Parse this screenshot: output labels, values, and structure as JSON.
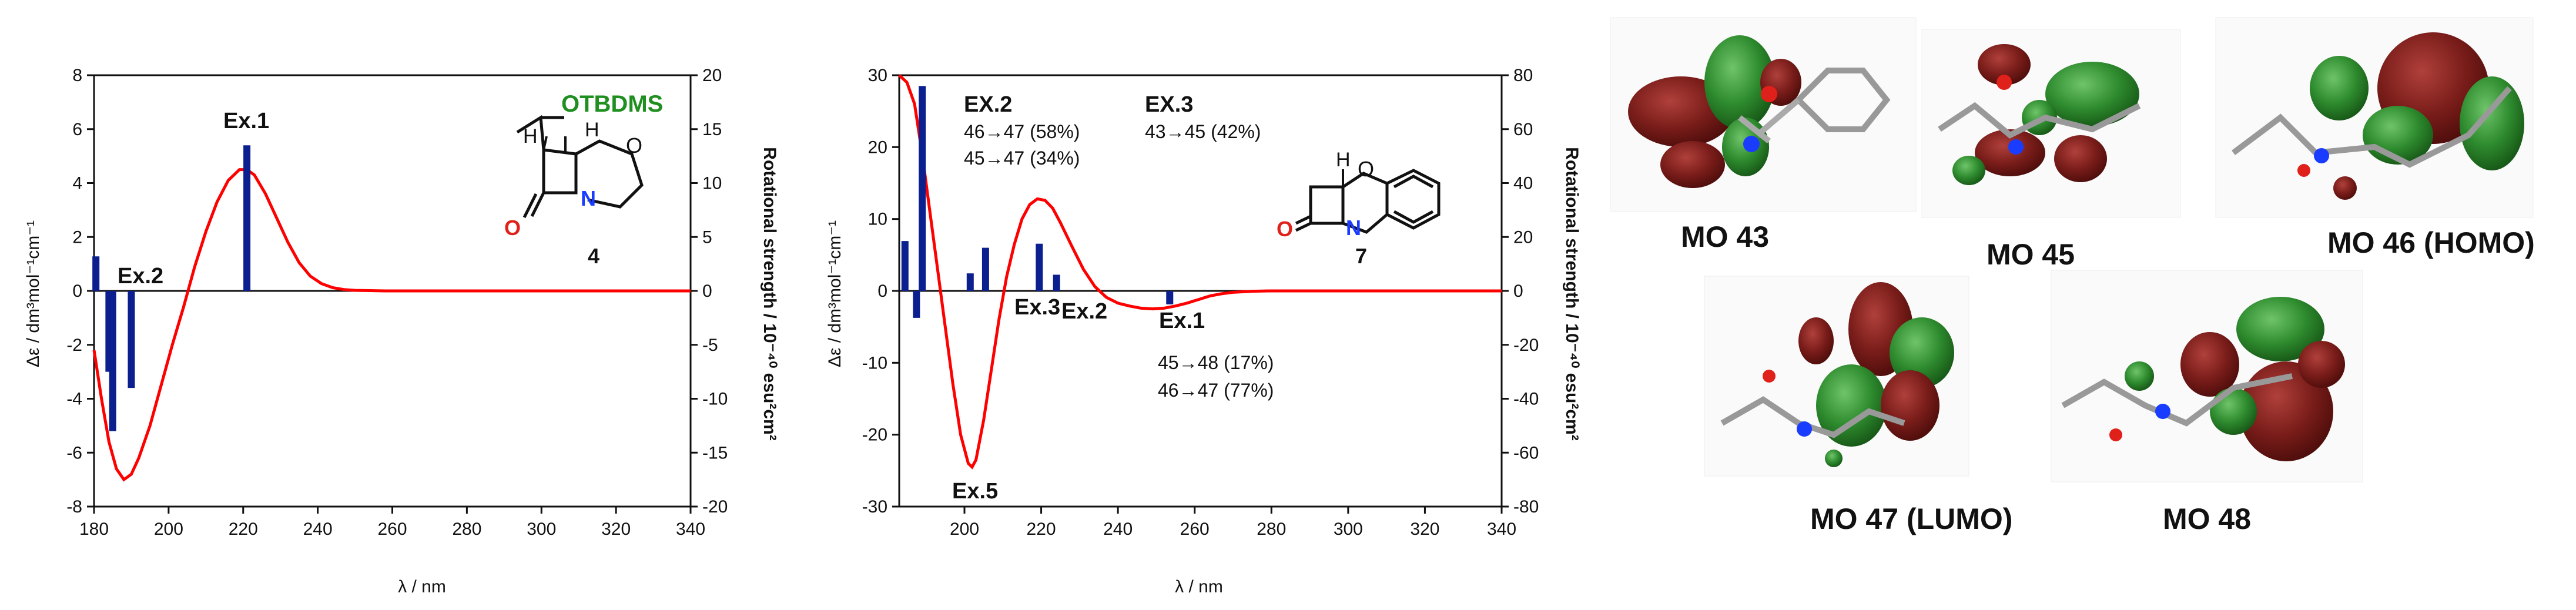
{
  "chart_data": [
    {
      "type": "line",
      "xlabel": "λ / nm",
      "ylabel": "Δε / dm³mol⁻¹cm⁻¹",
      "y2label": "Rotational strength / 10⁻⁴⁰ esu²cm²",
      "xlim": [
        180,
        340
      ],
      "ylim": [
        -8,
        8
      ],
      "y2lim": [
        -20,
        20
      ],
      "xticks": [
        "180",
        "200",
        "220",
        "240",
        "260",
        "280",
        "300",
        "320",
        "340"
      ],
      "yticks": [
        "-8",
        "-6",
        "-4",
        "-2",
        "0",
        "2",
        "4",
        "6",
        "8"
      ],
      "y2ticks": [
        "-20",
        "-15",
        "-10",
        "-5",
        "0",
        "5",
        "10",
        "15",
        "20"
      ],
      "curve": {
        "color": "#ff0000",
        "x": [
          180,
          182,
          184,
          186,
          188,
          190,
          192,
          195,
          198,
          201,
          204,
          207,
          210,
          213,
          216,
          219,
          221,
          223,
          226,
          229,
          232,
          235,
          238,
          241,
          244,
          247,
          250,
          254,
          258,
          262,
          270,
          280,
          300,
          320,
          340
        ],
        "y": [
          -2.2,
          -4.0,
          -5.6,
          -6.6,
          -7.0,
          -6.8,
          -6.2,
          -5.0,
          -3.5,
          -2.0,
          -0.6,
          0.9,
          2.2,
          3.3,
          4.1,
          4.5,
          4.5,
          4.3,
          3.6,
          2.7,
          1.8,
          1.05,
          0.55,
          0.27,
          0.12,
          0.05,
          0.02,
          0.01,
          0,
          0,
          0,
          0,
          0,
          0,
          0
        ]
      },
      "sticks": {
        "color": "#0b1f8e",
        "x": [
          180.5,
          184,
          185,
          190,
          221
        ],
        "r": [
          3.2,
          -7.5,
          -13,
          -9,
          13.5
        ]
      },
      "labels": [
        "Ex.1",
        "Ex.2"
      ],
      "compound": {
        "label": "4",
        "substituent": "OTBDMS",
        "h1": "H",
        "h2": "H",
        "o": "O",
        "n": "N",
        "carbonyl_o": "O"
      }
    },
    {
      "type": "line",
      "xlabel": "λ / nm",
      "ylabel": "Δε / dm³mol⁻¹cm⁻¹",
      "y2label": "Rotational strength / 10⁻⁴⁰ esu²cm²",
      "xlim": [
        183,
        340
      ],
      "ylim": [
        -30,
        30
      ],
      "y2lim": [
        -80,
        80
      ],
      "xticks": [
        "200",
        "220",
        "240",
        "260",
        "280",
        "300",
        "320",
        "340"
      ],
      "yticks": [
        "-30",
        "-20",
        "-10",
        "0",
        "10",
        "20",
        "30"
      ],
      "y2ticks": [
        "-80",
        "-60",
        "-40",
        "-20",
        "0",
        "20",
        "40",
        "60",
        "80"
      ],
      "curve": {
        "color": "#ff0000",
        "x": [
          183,
          185,
          187,
          189,
          191,
          193,
          195,
          197,
          199,
          201,
          202,
          203,
          205,
          207,
          209,
          211,
          213,
          215,
          217,
          219,
          221,
          223,
          225,
          228,
          231,
          234,
          237,
          240,
          243,
          246,
          249,
          252,
          255,
          258,
          261,
          264,
          267,
          270,
          275,
          280,
          290,
          300,
          320,
          340
        ],
        "y": [
          30,
          29,
          26,
          19,
          11,
          3,
          -5,
          -13,
          -20,
          -24,
          -24.5,
          -23.5,
          -18,
          -11,
          -4,
          2,
          6.5,
          10,
          12,
          12.8,
          12.6,
          11.5,
          9.5,
          6.2,
          3.0,
          0.6,
          -0.9,
          -1.7,
          -2.1,
          -2.4,
          -2.5,
          -2.4,
          -2.1,
          -1.7,
          -1.2,
          -0.7,
          -0.4,
          -0.2,
          -0.05,
          0,
          0,
          0,
          0,
          0
        ]
      },
      "sticks": {
        "color": "#0b1f8e",
        "x": [
          184.5,
          187.5,
          189,
          201.5,
          205.5,
          219.5,
          224,
          253.5
        ],
        "r": [
          18.5,
          -10,
          76,
          6.5,
          16,
          17.5,
          6,
          -5
        ]
      },
      "labels": [
        "Ex.5",
        "Ex.3",
        "Ex.2",
        "Ex.1"
      ],
      "annotations": {
        "ex2_title": "EX.2",
        "ex2_line1": "46→47 (58%)",
        "ex2_line2": "45→47 (34%)",
        "ex3_title": "EX.3",
        "ex3_line1": "43→45 (42%)",
        "ex1_line1": "45→48 (17%)",
        "ex1_line2": "46→47 (77%)"
      },
      "compound": {
        "label": "7",
        "h": "H",
        "o": "O",
        "n": "N",
        "carbonyl_o": "O"
      }
    }
  ],
  "orbitals": [
    "MO 43",
    "MO 45",
    "MO 46 (HOMO)",
    "MO 47 (LUMO)",
    "MO 48"
  ],
  "colors": {
    "curve": "#ff0000",
    "sticks": "#0b1f8e",
    "lobe_red": "#7a1d1a",
    "lobe_green": "#2e8b2e",
    "oxygen": "#e0201a",
    "nitrogen": "#1a3cff"
  }
}
